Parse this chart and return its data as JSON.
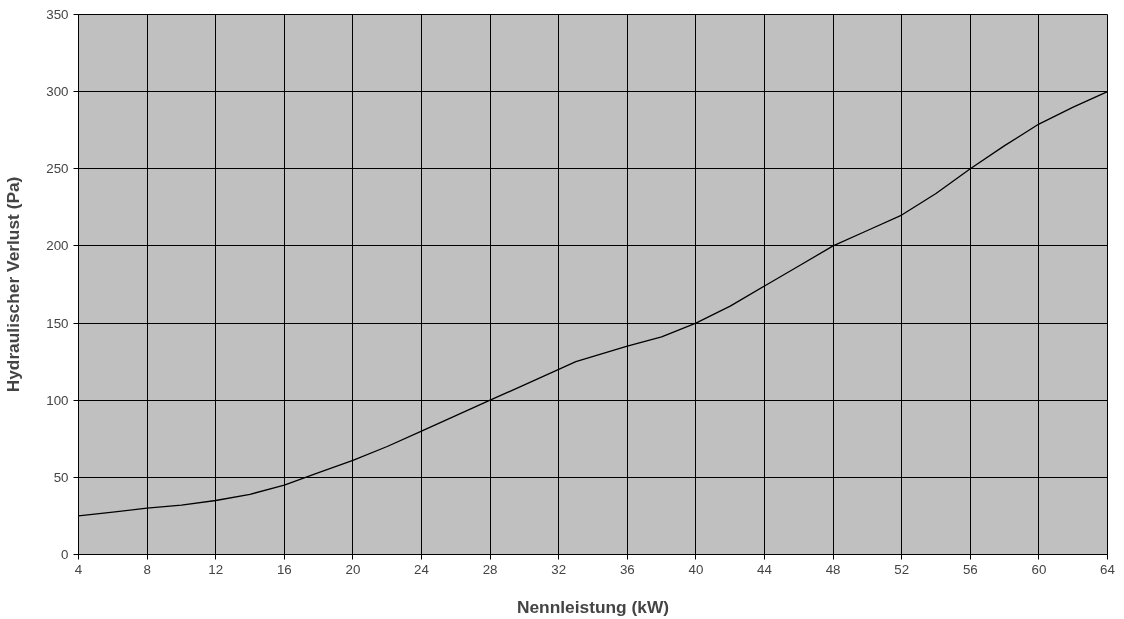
{
  "chart_data": {
    "type": "line",
    "xlabel": "Nennleistung (kW)",
    "ylabel": "Hydraulischer Verlust (Pa)",
    "x": [
      4,
      6,
      8,
      10,
      12,
      14,
      16,
      18,
      20,
      22,
      24,
      26,
      28,
      30,
      32,
      33,
      36,
      38,
      40,
      42,
      44,
      46,
      48,
      50,
      52,
      54,
      56,
      58,
      60,
      62,
      64
    ],
    "series": [
      {
        "color": "#000000",
        "values": [
          25,
          27.5,
          30,
          32,
          35,
          39,
          45,
          53,
          61,
          70,
          80,
          90,
          100,
          110,
          120,
          125,
          135,
          141,
          150,
          161,
          174,
          187,
          200,
          210,
          220,
          234,
          250,
          265,
          279,
          290,
          300
        ]
      }
    ],
    "xlim": [
      4,
      64
    ],
    "xticks": [
      4,
      8,
      12,
      16,
      20,
      24,
      28,
      32,
      36,
      40,
      44,
      48,
      52,
      56,
      60,
      64
    ],
    "ylim": [
      0,
      350
    ],
    "yticks": [
      0,
      50,
      100,
      150,
      200,
      250,
      300,
      350
    ],
    "grid": true,
    "marker": "none",
    "line_style": "solid"
  }
}
